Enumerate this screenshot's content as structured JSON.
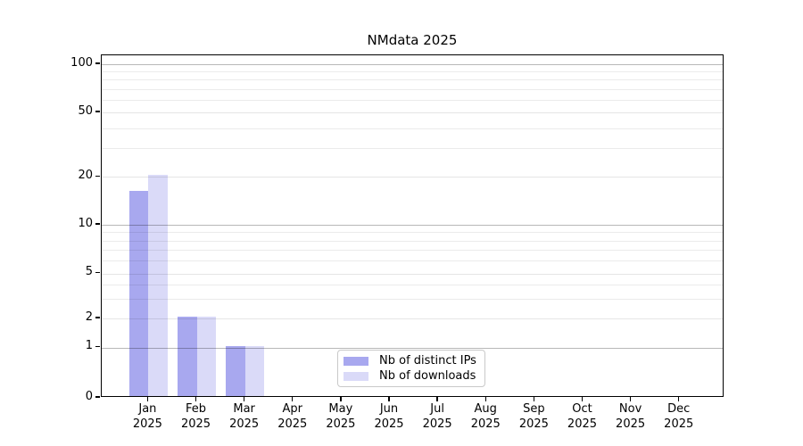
{
  "chart_data": {
    "type": "bar",
    "title": "NMdata 2025",
    "categories": [
      "Jan",
      "Feb",
      "Mar",
      "Apr",
      "May",
      "Jun",
      "Jul",
      "Aug",
      "Sep",
      "Oct",
      "Nov",
      "Dec"
    ],
    "category_year": "2025",
    "series": [
      {
        "name": "Nb of distinct IPs",
        "color": "#a8a8ef",
        "values": [
          16,
          2,
          1,
          0,
          0,
          0,
          0,
          0,
          0,
          0,
          0,
          0
        ]
      },
      {
        "name": "Nb of downloads",
        "color": "#dadaf8",
        "values": [
          20,
          2,
          1,
          0,
          0,
          0,
          0,
          0,
          0,
          0,
          0,
          0
        ]
      }
    ],
    "y_axis": {
      "scale": "log-like",
      "tick_values": [
        0,
        1,
        2,
        5,
        10,
        20,
        50,
        100
      ],
      "tick_labels": [
        "0",
        "1",
        "2",
        "5",
        "10",
        "20",
        "50",
        "100"
      ],
      "emphasized_ticks": [
        1,
        10,
        100
      ],
      "minor_gridlines": [
        3,
        4,
        6,
        7,
        8,
        9,
        30,
        40,
        60,
        70,
        80,
        90
      ],
      "ylim": [
        0,
        110
      ]
    },
    "xlabel": "",
    "ylabel": "",
    "grid": true,
    "legend_position": "lower center"
  },
  "colors": {
    "background": "#ffffff",
    "spine": "#000000",
    "grid_minor": "rgba(0,0,0,0.08)",
    "grid_emphasized": "rgba(0,0,0,0.28)",
    "legend_border": "#c9c9c9"
  }
}
